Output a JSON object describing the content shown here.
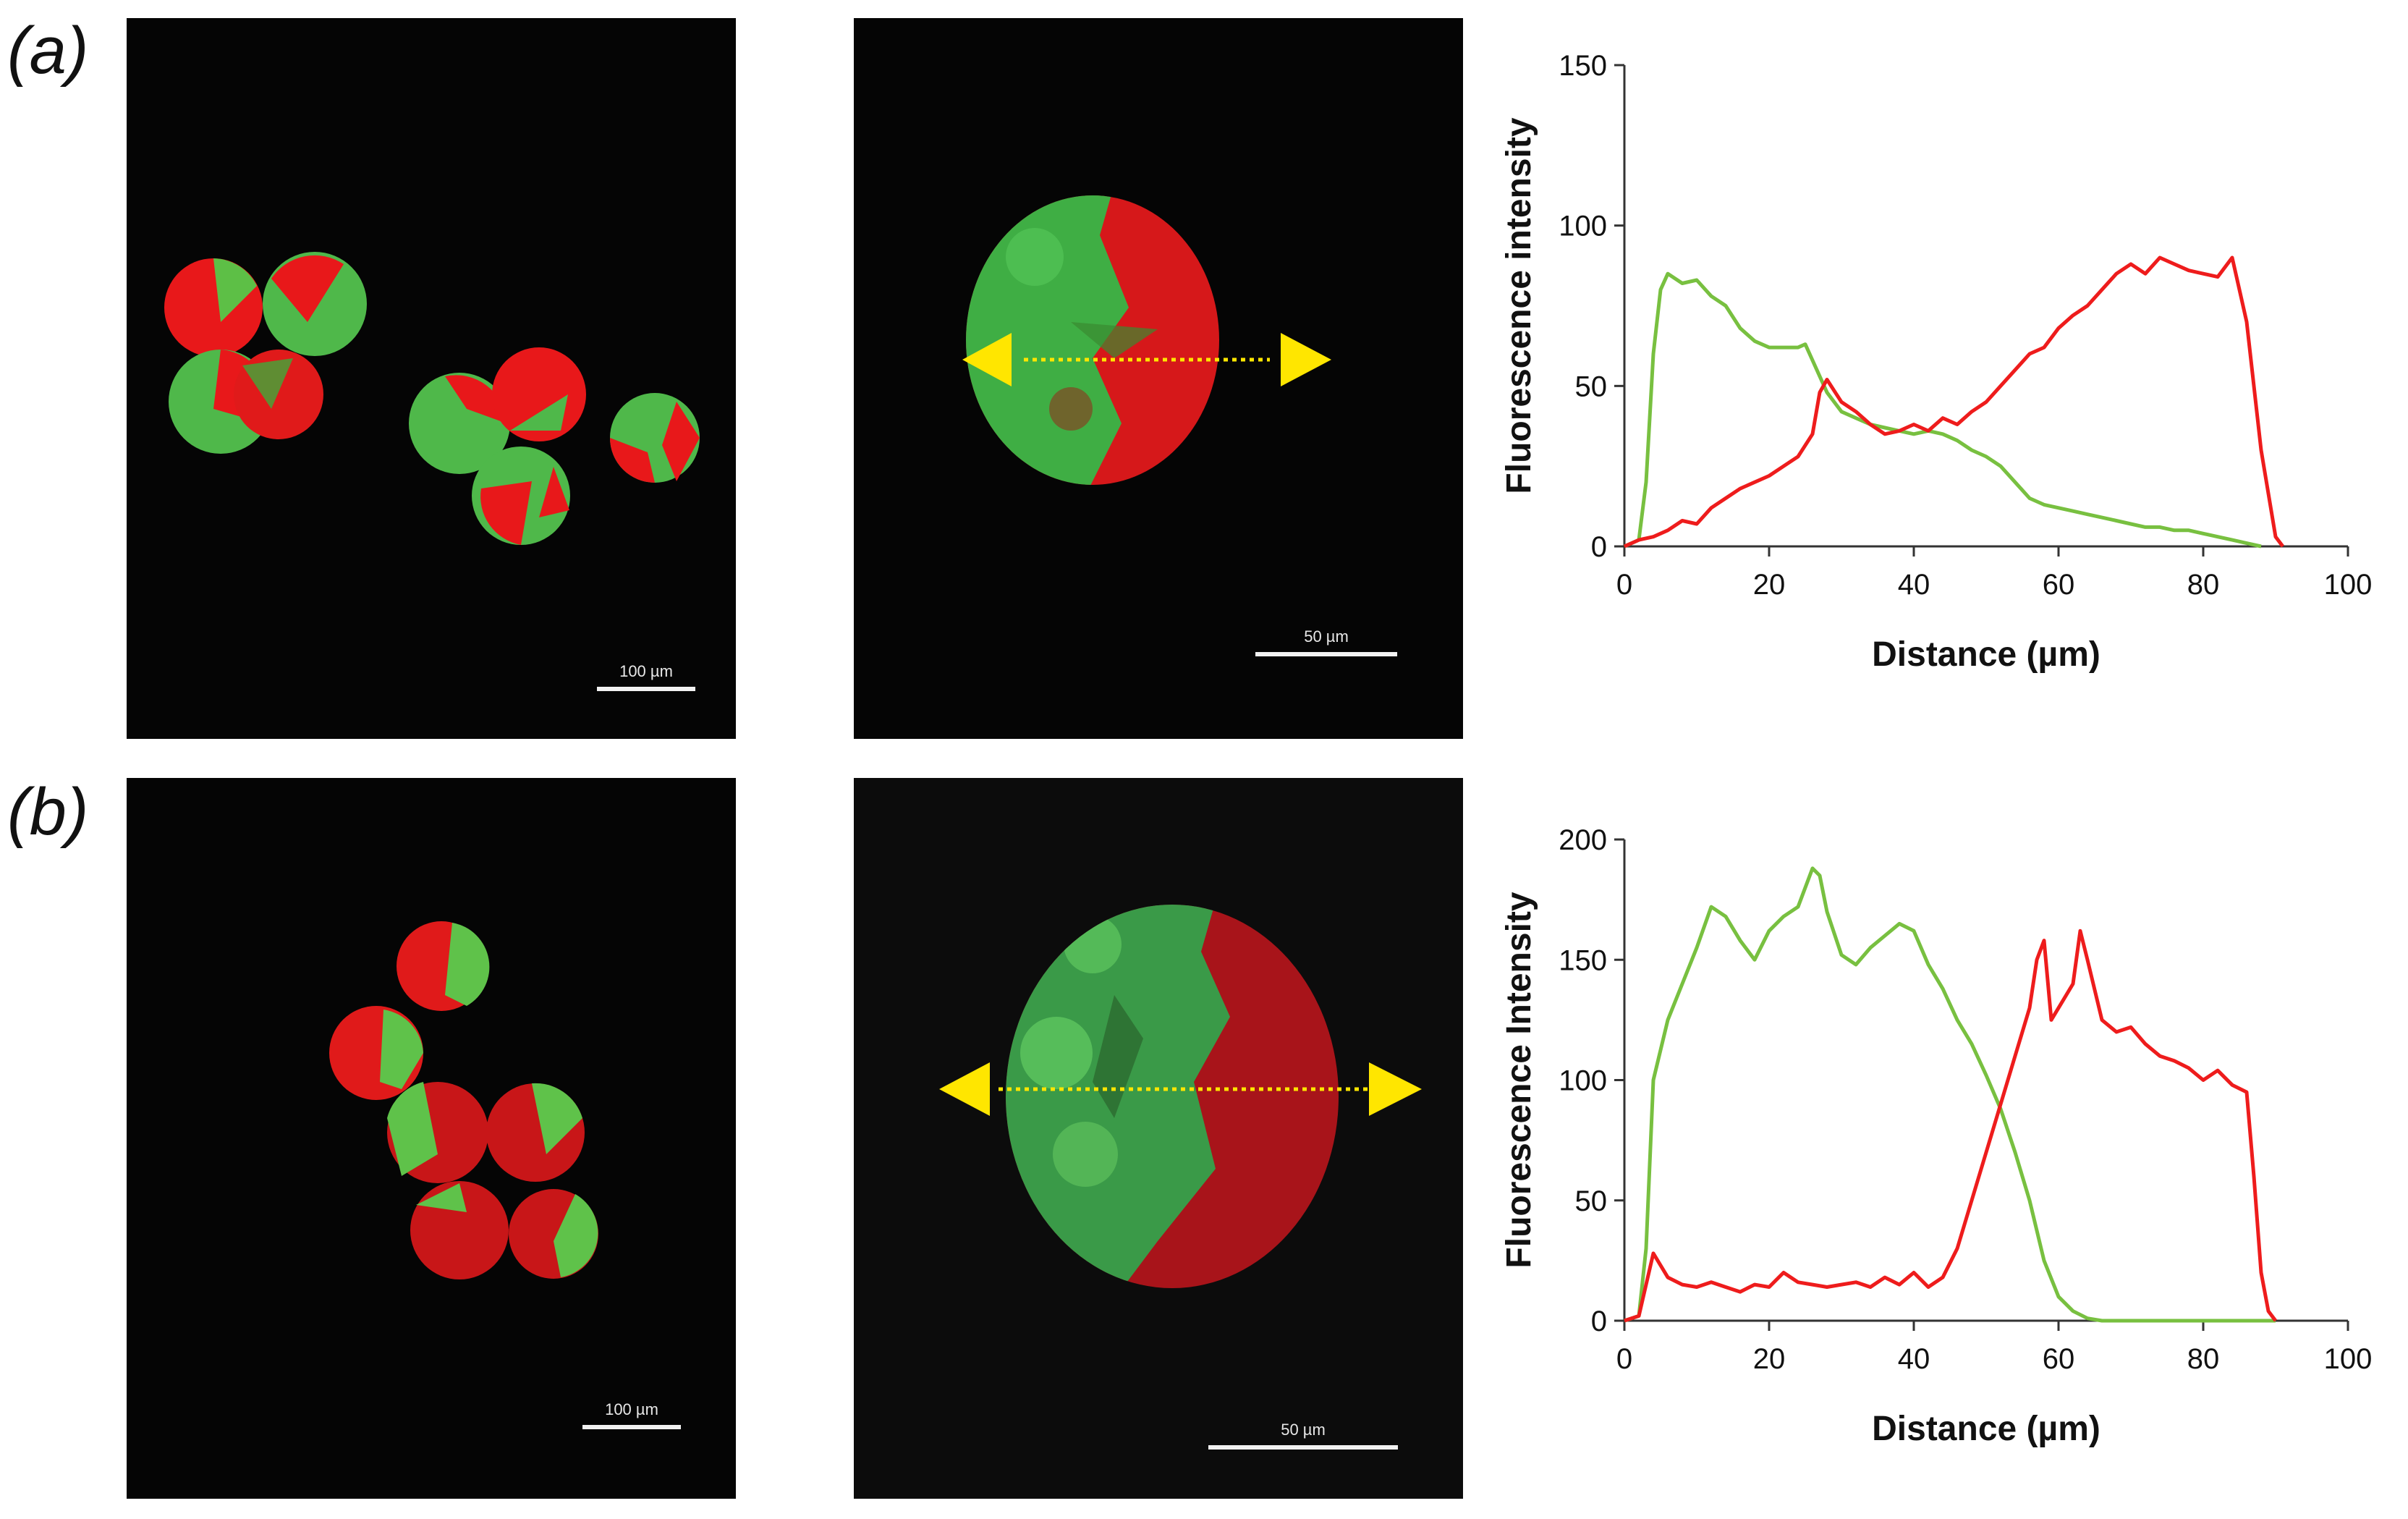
{
  "panels": {
    "a": {
      "label": "(a)",
      "overview_scale": "100 µm",
      "closeup_scale": "50 µm"
    },
    "b": {
      "label": "(b)",
      "overview_scale": "100 µm",
      "closeup_scale": "50 µm"
    }
  },
  "colors": {
    "green": "#78c040",
    "red": "#ee1c1c",
    "arrow": "#ffe600"
  },
  "chart_data": [
    {
      "type": "line",
      "panel": "a",
      "xlabel": "Distance (µm)",
      "ylabel": "Fluorescence intensity",
      "xlim": [
        0,
        100
      ],
      "ylim": [
        0,
        150
      ],
      "xticks": [
        0,
        20,
        40,
        60,
        80,
        100
      ],
      "yticks": [
        0,
        50,
        100,
        150
      ],
      "series": [
        {
          "name": "green",
          "color": "#78c040",
          "x": [
            0,
            1,
            2,
            3,
            4,
            5,
            6,
            8,
            10,
            12,
            14,
            16,
            18,
            20,
            22,
            24,
            25,
            26,
            28,
            30,
            32,
            34,
            36,
            38,
            40,
            42,
            44,
            46,
            48,
            50,
            52,
            54,
            56,
            58,
            60,
            62,
            64,
            66,
            68,
            70,
            72,
            74,
            76,
            78,
            80,
            82,
            84,
            86,
            88
          ],
          "y": [
            0,
            1,
            2,
            20,
            60,
            80,
            85,
            82,
            83,
            78,
            75,
            68,
            64,
            62,
            62,
            62,
            63,
            58,
            48,
            42,
            40,
            38,
            37,
            36,
            35,
            36,
            35,
            33,
            30,
            28,
            25,
            20,
            15,
            13,
            12,
            11,
            10,
            9,
            8,
            7,
            6,
            6,
            5,
            5,
            4,
            3,
            2,
            1,
            0
          ]
        },
        {
          "name": "red",
          "color": "#ee1c1c",
          "x": [
            0,
            2,
            4,
            6,
            8,
            10,
            12,
            14,
            16,
            18,
            20,
            22,
            24,
            26,
            27,
            28,
            30,
            32,
            34,
            36,
            38,
            40,
            42,
            44,
            46,
            48,
            50,
            52,
            54,
            56,
            58,
            60,
            62,
            64,
            66,
            68,
            70,
            72,
            74,
            76,
            78,
            80,
            82,
            84,
            85,
            86,
            88,
            90,
            91
          ],
          "y": [
            0,
            2,
            3,
            5,
            8,
            7,
            12,
            15,
            18,
            20,
            22,
            25,
            28,
            35,
            48,
            52,
            45,
            42,
            38,
            35,
            36,
            38,
            36,
            40,
            38,
            42,
            45,
            50,
            55,
            60,
            62,
            68,
            72,
            75,
            80,
            85,
            88,
            85,
            90,
            88,
            86,
            85,
            84,
            90,
            80,
            70,
            30,
            3,
            0
          ]
        }
      ]
    },
    {
      "type": "line",
      "panel": "b",
      "xlabel": "Distance (µm)",
      "ylabel": "Fluorescence Intensity",
      "xlim": [
        0,
        100
      ],
      "ylim": [
        0,
        200
      ],
      "xticks": [
        0,
        20,
        40,
        60,
        80,
        100
      ],
      "yticks": [
        0,
        50,
        100,
        150,
        200
      ],
      "series": [
        {
          "name": "green",
          "color": "#78c040",
          "x": [
            0,
            1,
            2,
            3,
            4,
            6,
            8,
            10,
            12,
            14,
            16,
            18,
            20,
            22,
            24,
            26,
            27,
            28,
            30,
            32,
            34,
            36,
            38,
            40,
            42,
            44,
            46,
            48,
            50,
            52,
            54,
            56,
            58,
            60,
            62,
            64,
            66,
            68,
            70,
            75,
            80,
            85,
            90
          ],
          "y": [
            0,
            1,
            2,
            30,
            100,
            125,
            140,
            155,
            172,
            168,
            158,
            150,
            162,
            168,
            172,
            188,
            185,
            170,
            152,
            148,
            155,
            160,
            165,
            162,
            148,
            138,
            125,
            115,
            102,
            88,
            70,
            50,
            25,
            10,
            4,
            1,
            0,
            0,
            0,
            0,
            0,
            0,
            0
          ]
        },
        {
          "name": "red",
          "color": "#ee1c1c",
          "x": [
            0,
            2,
            3,
            4,
            6,
            8,
            10,
            12,
            14,
            16,
            18,
            20,
            22,
            24,
            26,
            28,
            30,
            32,
            34,
            36,
            38,
            40,
            42,
            44,
            46,
            48,
            50,
            52,
            54,
            56,
            57,
            58,
            59,
            60,
            62,
            63,
            64,
            66,
            68,
            70,
            72,
            74,
            76,
            78,
            80,
            82,
            84,
            86,
            87,
            88,
            89,
            90
          ],
          "y": [
            0,
            2,
            15,
            28,
            18,
            15,
            14,
            16,
            14,
            12,
            15,
            14,
            20,
            16,
            15,
            14,
            15,
            16,
            14,
            18,
            15,
            20,
            14,
            18,
            30,
            50,
            70,
            90,
            110,
            130,
            150,
            158,
            125,
            130,
            140,
            162,
            150,
            125,
            120,
            122,
            115,
            110,
            108,
            105,
            100,
            104,
            98,
            95,
            60,
            20,
            4,
            0
          ]
        }
      ]
    }
  ]
}
